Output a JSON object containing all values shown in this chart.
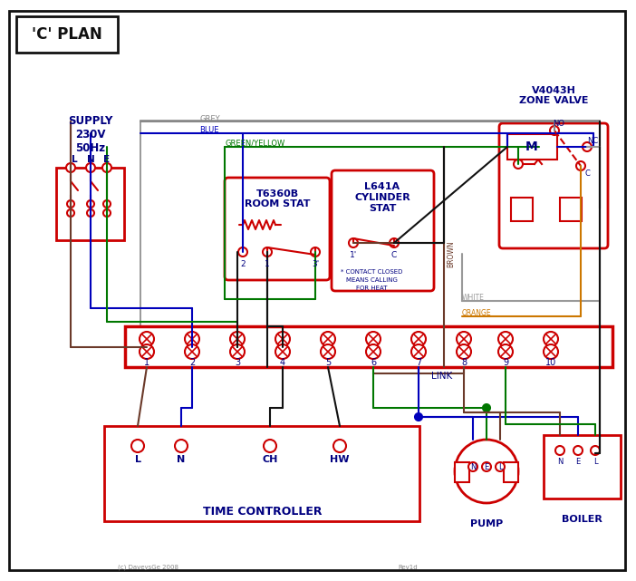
{
  "bg": "#ffffff",
  "red": "#cc0000",
  "blue": "#0000bb",
  "green": "#007700",
  "grey": "#888888",
  "brown": "#6B3A2A",
  "black": "#111111",
  "orange": "#CC7700",
  "dblue": "#000080",
  "white_wire": "#999999",
  "title": "'C' PLAN",
  "supply": "SUPPLY\n230V\n50Hz",
  "zone_v1": "V4043H",
  "zone_v2": "ZONE VALVE",
  "room_s1": "T6360B",
  "room_s2": "ROOM STAT",
  "cyl_s1": "L641A",
  "cyl_s2": "CYLINDER",
  "cyl_s3": "STAT",
  "tc": "TIME CONTROLLER",
  "pump": "PUMP",
  "boiler": "BOILER",
  "copy": "(c) DaveysGe 2008",
  "rev": "Rev1d",
  "link": "LINK",
  "grey_lbl": "GREY",
  "blue_lbl": "BLUE",
  "gy_lbl": "GREEN/YELLOW",
  "brown_lbl": "BROWN",
  "white_lbl": "WHITE",
  "orange_lbl": "ORANGE"
}
